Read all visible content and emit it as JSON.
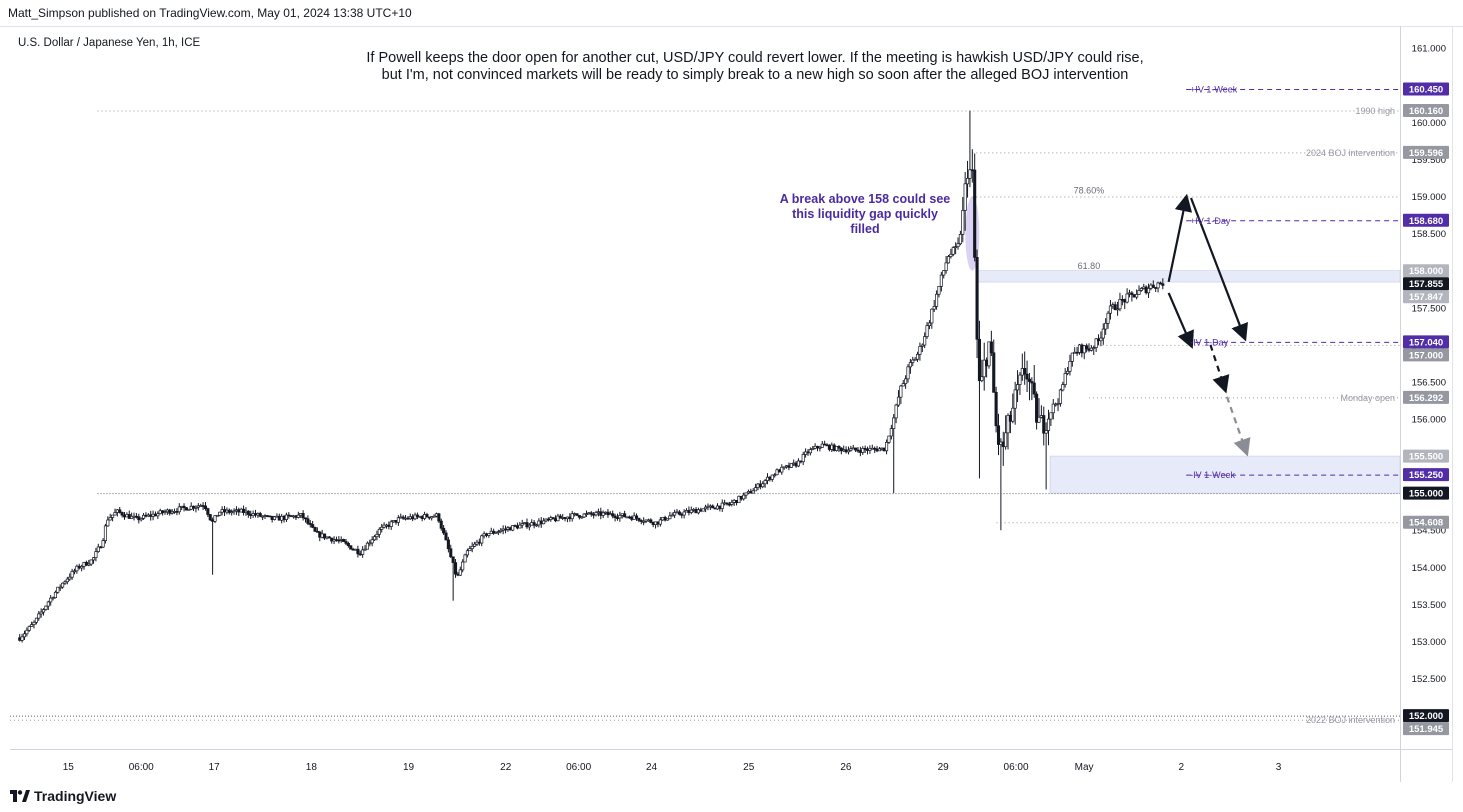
{
  "header": {
    "published": "Matt_Simpson published on TradingView.com, May 01, 2024 13:38 UTC+10"
  },
  "footer": {
    "brand": "TradingView"
  },
  "colors": {
    "candle_body": "#131722",
    "axis_text": "#131722",
    "purple": "#512da8",
    "purple_label": "#4a2ba0",
    "dark_label": "#131722",
    "grey_label": "#9598a1",
    "zone_fill": "#e3e6f7",
    "gap_fill": "#cdbff0"
  },
  "chart_data": {
    "type": "candlestick",
    "symbol": "U.S. Dollar / Japanese Yen, 1h, ICE",
    "annotation_main": [
      "If Powell keeps the door open for another cut, USD/JPY could revert lower. If the meeting is hawkish USD/JPY could rise,",
      "but I'm, not convinced markets will be ready to simply break to a new high so soon after the alleged BOJ intervention"
    ],
    "annotation_gap": [
      "A break above 158 could see",
      "this liquidity gap quickly",
      "filled"
    ],
    "ylim": [
      151.55,
      161.3
    ],
    "y_ticks": [
      "161.000",
      "160.000",
      "159.500",
      "159.000",
      "158.500",
      "158.000",
      "157.500",
      "157.000",
      "156.500",
      "156.000",
      "155.500",
      "155.000",
      "154.500",
      "154.000",
      "153.500",
      "153.000",
      "152.500",
      "152.000"
    ],
    "x_ticks": [
      {
        "label": "15",
        "t": 0.5
      },
      {
        "label": "06:00",
        "t": 1.25
      },
      {
        "label": "17",
        "t": 2
      },
      {
        "label": "18",
        "t": 3
      },
      {
        "label": "19",
        "t": 4
      },
      {
        "label": "22",
        "t": 5
      },
      {
        "label": "06:00",
        "t": 5.75
      },
      {
        "label": "24",
        "t": 6.5
      },
      {
        "label": "25",
        "t": 7.5
      },
      {
        "label": "26",
        "t": 8.5
      },
      {
        "label": "29",
        "t": 9.5
      },
      {
        "label": "06:00",
        "t": 10.25
      },
      {
        "label": "May",
        "t": 10.95
      },
      {
        "label": "2",
        "t": 11.95
      },
      {
        "label": "3",
        "t": 12.95
      }
    ],
    "price_path": [
      [
        0.0,
        153.05
      ],
      [
        0.15,
        153.25
      ],
      [
        0.3,
        153.55
      ],
      [
        0.45,
        153.8
      ],
      [
        0.6,
        154.0
      ],
      [
        0.75,
        154.1
      ],
      [
        0.85,
        154.35
      ],
      [
        0.9,
        154.65
      ],
      [
        1.0,
        154.75
      ],
      [
        1.2,
        154.65
      ],
      [
        1.5,
        154.75
      ],
      [
        1.7,
        154.8
      ],
      [
        1.9,
        154.85
      ],
      [
        1.98,
        154.6
      ],
      [
        2.05,
        154.75
      ],
      [
        2.3,
        154.75
      ],
      [
        2.6,
        154.65
      ],
      [
        2.9,
        154.7
      ],
      [
        3.05,
        154.45
      ],
      [
        3.3,
        154.35
      ],
      [
        3.5,
        154.2
      ],
      [
        3.7,
        154.5
      ],
      [
        3.9,
        154.65
      ],
      [
        4.1,
        154.68
      ],
      [
        4.3,
        154.7
      ],
      [
        4.42,
        154.2
      ],
      [
        4.5,
        153.85
      ],
      [
        4.6,
        154.2
      ],
      [
        4.8,
        154.45
      ],
      [
        5.1,
        154.55
      ],
      [
        5.4,
        154.62
      ],
      [
        5.7,
        154.7
      ],
      [
        6.0,
        154.72
      ],
      [
        6.3,
        154.68
      ],
      [
        6.55,
        154.6
      ],
      [
        6.7,
        154.7
      ],
      [
        7.0,
        154.78
      ],
      [
        7.3,
        154.85
      ],
      [
        7.5,
        155.0
      ],
      [
        7.6,
        155.1
      ],
      [
        7.8,
        155.3
      ],
      [
        8.0,
        155.4
      ],
      [
        8.1,
        155.55
      ],
      [
        8.25,
        155.65
      ],
      [
        8.4,
        155.6
      ],
      [
        8.6,
        155.58
      ],
      [
        8.9,
        155.6
      ],
      [
        9.0,
        156.05
      ],
      [
        9.05,
        156.35
      ],
      [
        9.15,
        156.7
      ],
      [
        9.25,
        156.9
      ],
      [
        9.35,
        157.3
      ],
      [
        9.45,
        157.75
      ],
      [
        9.55,
        158.2
      ],
      [
        9.65,
        158.3
      ],
      [
        9.7,
        158.7
      ],
      [
        9.75,
        159.4
      ],
      [
        9.8,
        159.25
      ],
      [
        9.85,
        157.0
      ],
      [
        9.88,
        156.3
      ],
      [
        9.93,
        156.8
      ],
      [
        9.98,
        157.05
      ],
      [
        10.05,
        155.8
      ],
      [
        10.1,
        155.55
      ],
      [
        10.15,
        155.8
      ],
      [
        10.25,
        156.3
      ],
      [
        10.35,
        156.7
      ],
      [
        10.45,
        156.1
      ],
      [
        10.5,
        155.9
      ],
      [
        10.6,
        156.1
      ],
      [
        10.7,
        156.3
      ],
      [
        10.8,
        156.8
      ],
      [
        10.9,
        156.95
      ],
      [
        11.0,
        156.95
      ],
      [
        11.1,
        157.05
      ],
      [
        11.2,
        157.45
      ],
      [
        11.35,
        157.6
      ],
      [
        11.5,
        157.7
      ],
      [
        11.65,
        157.8
      ],
      [
        11.78,
        157.85
      ]
    ],
    "events": [
      {
        "t": 1.98,
        "low": 153.9
      },
      {
        "t": 4.45,
        "low": 153.55
      },
      {
        "t": 9.0,
        "low": 155.0
      },
      {
        "t": 9.78,
        "high": 160.16
      },
      {
        "t": 9.88,
        "low": 155.2
      },
      {
        "t": 10.1,
        "low": 154.5
      },
      {
        "t": 10.55,
        "low": 155.05
      }
    ],
    "levels": [
      {
        "price": 160.45,
        "axis_label": "160.450",
        "label": "+IV 1-Week",
        "label_t": 12.0,
        "t0": 12.0,
        "style": "purple-dash"
      },
      {
        "price": 160.16,
        "axis_label": "160.160",
        "label": "1990 high",
        "label_t": 0.8,
        "t0": 0.8,
        "style": "grey-dot"
      },
      {
        "price": 159.596,
        "axis_label": "159.596",
        "label": "2024 BOJ intervention",
        "t0": 9.8,
        "style": "grey-dot"
      },
      {
        "price": 159.0,
        "t0": 9.8,
        "style": "grey-dot"
      },
      {
        "price": 158.68,
        "axis_label": "158.680",
        "label": "+IV 1-Day",
        "t0": 12.0,
        "style": "purple-dash"
      },
      {
        "price": 158.0,
        "axis_label": "158.000",
        "style": "none"
      },
      {
        "price": 157.855,
        "axis_label": "157.855",
        "style": "price"
      },
      {
        "price": 157.847,
        "axis_label": "157.847",
        "style": "none"
      },
      {
        "price": 157.04,
        "axis_label": "157.040",
        "label": "-IV 1-Day",
        "t0": 12.0,
        "style": "purple-dash"
      },
      {
        "price": 157.0,
        "axis_label": "157.000",
        "t0": 10.85,
        "style": "grey-dot"
      },
      {
        "price": 156.292,
        "axis_label": "156.292",
        "label": "Monday open",
        "t0": 11.0,
        "style": "grey-dot"
      },
      {
        "price": 155.5,
        "axis_label": "155.500",
        "style": "none"
      },
      {
        "price": 155.25,
        "axis_label": "155.250",
        "label": "-IV 1-Week",
        "t0": 12.0,
        "style": "purple-dash"
      },
      {
        "price": 155.0,
        "axis_label": "155.000",
        "t0": 0.8,
        "style": "dark-dot"
      },
      {
        "price": 154.608,
        "axis_label": "154.608",
        "t0": 10.05,
        "style": "grey-dot"
      },
      {
        "price": 152.0,
        "axis_label": "152.000",
        "t0": -0.1,
        "style": "dark-dot"
      },
      {
        "price": 151.945,
        "axis_label": "151.945",
        "label": "2022 BOJ intervention",
        "t0": -0.1,
        "style": "grey-dot"
      }
    ],
    "zones": [
      {
        "t0": 9.85,
        "t1": 14.2,
        "y0": 157.847,
        "y1": 158.0
      },
      {
        "t0": 10.6,
        "t1": 14.2,
        "y0": 155.0,
        "y1": 155.5
      }
    ],
    "fib": [
      {
        "label": "78.60%",
        "t": 11.0,
        "price": 159.0
      },
      {
        "label": "61.80",
        "t": 11.0,
        "price": 157.98
      }
    ],
    "arrows": [
      {
        "from": [
          11.82,
          157.85
        ],
        "to": [
          12.0,
          158.98
        ],
        "kind": "solid"
      },
      {
        "from": [
          12.05,
          158.98
        ],
        "to": [
          12.6,
          157.1
        ],
        "kind": "solid"
      },
      {
        "from": [
          11.82,
          157.7
        ],
        "to": [
          12.05,
          157.0
        ],
        "kind": "solid"
      },
      {
        "from": [
          12.25,
          157.0
        ],
        "to": [
          12.4,
          156.4
        ],
        "kind": "dash-black"
      },
      {
        "from": [
          12.42,
          156.3
        ],
        "to": [
          12.62,
          155.55
        ],
        "kind": "dash-grey"
      }
    ],
    "gap_ellipse": {
      "t": 9.8,
      "y0": 158.0,
      "y1": 159.0
    }
  }
}
